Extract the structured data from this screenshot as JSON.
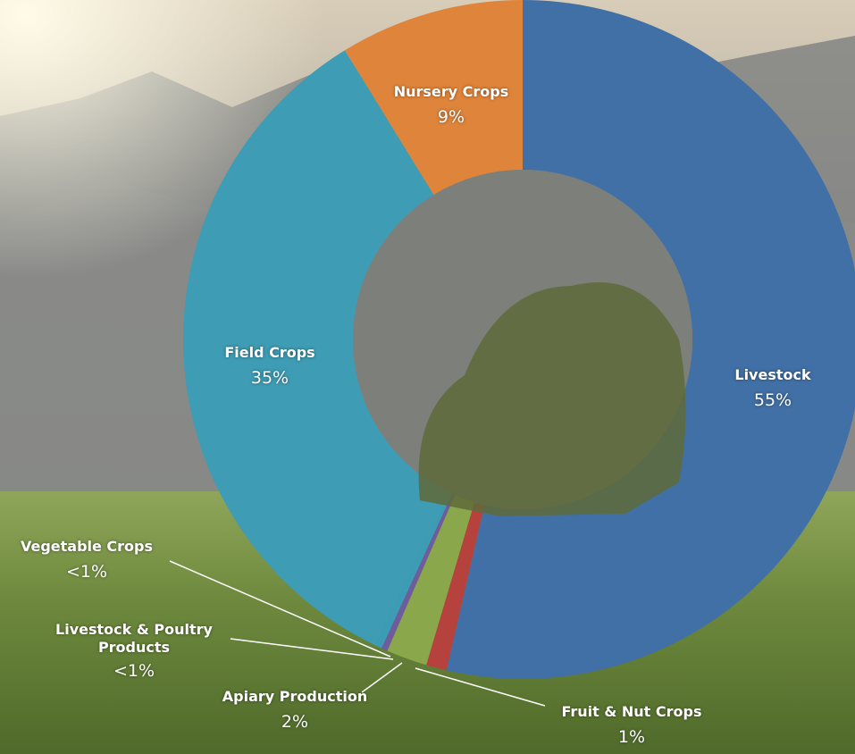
{
  "chart_data": {
    "type": "donut",
    "categories": [
      "Livestock",
      "Fruit & Nut Crops",
      "Apiary Production",
      "Livestock & Poultry Products",
      "Vegetable Crops",
      "Field Crops",
      "Nursery Crops"
    ],
    "values": [
      55,
      1,
      2,
      0.3,
      0.3,
      35,
      9
    ],
    "value_labels": [
      "55%",
      "1%",
      "2%",
      "<1%",
      "<1%",
      "35%",
      "9%"
    ],
    "colors": [
      "#4170a6",
      "#b5423c",
      "#8aa74c",
      "#6e5c9c",
      "#3b9cb8",
      "#3e9cb4",
      "#df843b"
    ]
  }
}
